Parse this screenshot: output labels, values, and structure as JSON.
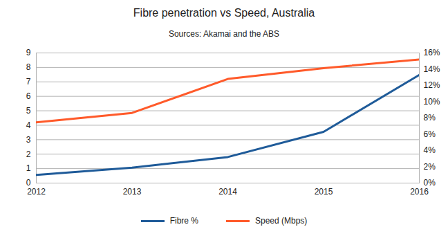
{
  "chart_data": {
    "type": "line",
    "title": "Fibre penetration vs Speed, Australia",
    "subtitle": "Sources: Akamai and the ABS",
    "x": [
      2012,
      2013,
      2014,
      2015,
      2016
    ],
    "xlim": [
      2012,
      2016
    ],
    "xticks": [
      2012,
      2013,
      2014,
      2015,
      2016
    ],
    "ylim": [
      0,
      9
    ],
    "yticks": [
      0,
      1,
      2,
      3,
      4,
      5,
      6,
      7,
      8,
      9
    ],
    "y2lim": [
      0,
      16
    ],
    "y2ticks": [
      {
        "value": 0,
        "label": "0%"
      },
      {
        "value": 2,
        "label": "2%"
      },
      {
        "value": 4,
        "label": "4%"
      },
      {
        "value": 6,
        "label": "6%"
      },
      {
        "value": 8,
        "label": "8%"
      },
      {
        "value": 10,
        "label": "10%"
      },
      {
        "value": 12,
        "label": "12%"
      },
      {
        "value": 14,
        "label": "14%"
      },
      {
        "value": 16,
        "label": "16%"
      }
    ],
    "grid": true,
    "legend": "bottom",
    "series": [
      {
        "name": "Fibre %",
        "color": "#1f5b99",
        "axis": "y2",
        "values": [
          1.0,
          1.9,
          3.2,
          6.3,
          13.3
        ]
      },
      {
        "name": "Speed (Mbps)",
        "color": "#ff5a2a",
        "axis": "y",
        "values": [
          4.2,
          4.85,
          7.2,
          7.95,
          8.55
        ]
      }
    ]
  }
}
